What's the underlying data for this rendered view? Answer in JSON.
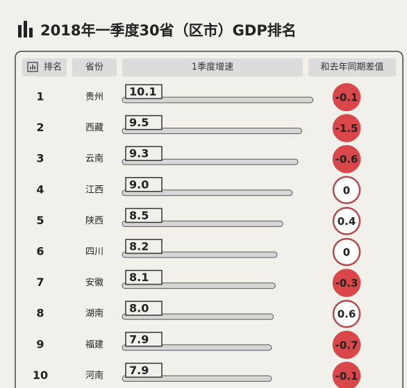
{
  "chart_data": {
    "type": "bar",
    "title": "2018年一季度30省（区市）GDP排名",
    "headers": [
      "排名",
      "省份",
      "1季度增速",
      "和去年同期差值"
    ],
    "ranks": [
      1,
      2,
      3,
      4,
      5,
      6,
      7,
      8,
      9,
      10
    ],
    "categories": [
      "贵州",
      "西藏",
      "云南",
      "江西",
      "陕西",
      "四川",
      "安徽",
      "湖南",
      "福建",
      "河南"
    ],
    "values": [
      10.1,
      9.5,
      9.3,
      9.0,
      8.5,
      8.2,
      8.1,
      8.0,
      7.9,
      7.9
    ],
    "value_labels": [
      "10.1",
      "9.5",
      "9.3",
      "9.0",
      "8.5",
      "8.2",
      "8.1",
      "8.0",
      "7.9",
      "7.9"
    ],
    "differences": [
      -0.1,
      -1.5,
      -0.6,
      0,
      0.4,
      0,
      -0.3,
      0.6,
      -0.7,
      -0.1
    ],
    "color": "#d6d6d6",
    "negative_color": "#d9474a"
  }
}
